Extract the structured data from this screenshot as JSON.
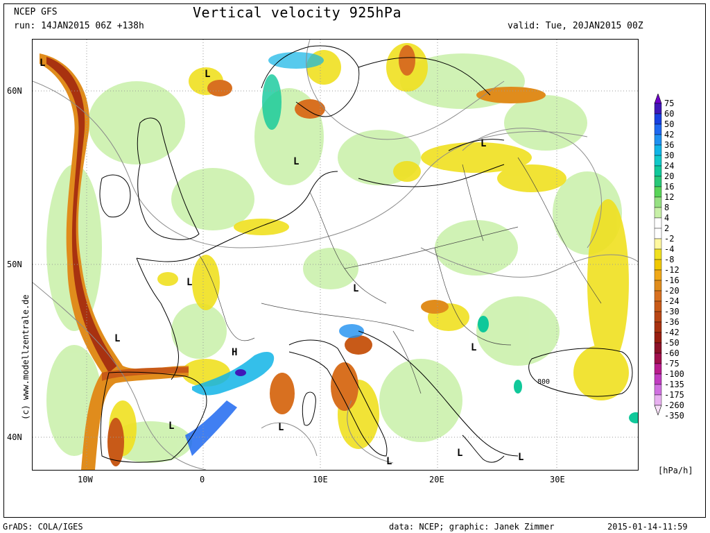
{
  "header": {
    "model": "NCEP GFS",
    "run": "run: 14JAN2015 06Z +138h",
    "title": "Vertical velocity 925hPa",
    "valid": "valid: Tue, 20JAN2015 00Z"
  },
  "footer": {
    "software": "GrADS: COLA/IGES",
    "credit": "data: NCEP; graphic: Janek Zimmer",
    "timestamp": "2015-01-14-11:59"
  },
  "side_credit": "(c) www.modellzentrale.de",
  "axes": {
    "x_labels": [
      "10W",
      "0",
      "10E",
      "20E",
      "30E"
    ],
    "y_labels": [
      "60N",
      "50N",
      "40N"
    ]
  },
  "pressure_centers": {
    "labels": [
      "L",
      "L",
      "L",
      "L",
      "L",
      "L",
      "L",
      "H",
      "L",
      "L",
      "L",
      "L",
      "L",
      "L"
    ],
    "contour_label": "800"
  },
  "legend": {
    "unit": "[hPa/h]",
    "values": [
      "75",
      "60",
      "50",
      "42",
      "36",
      "30",
      "24",
      "20",
      "16",
      "12",
      "8",
      "4",
      "2",
      "-2",
      "-4",
      "-8",
      "-12",
      "-16",
      "-20",
      "-24",
      "-30",
      "-36",
      "-42",
      "-50",
      "-60",
      "-75",
      "-100",
      "-135",
      "-175",
      "-260",
      "-350"
    ],
    "colors": [
      "#6f00cc",
      "#4018b8",
      "#1840e0",
      "#1e68f0",
      "#1e90f0",
      "#10b4e6",
      "#10c8c8",
      "#10c89a",
      "#28c878",
      "#58d458",
      "#96e082",
      "#c8f0a8",
      "#ffffff",
      "#ffffff",
      "#fff8a0",
      "#f0e020",
      "#f0c800",
      "#f0a818",
      "#e08c1c",
      "#d87020",
      "#c85a18",
      "#b84614",
      "#a83210",
      "#981e10",
      "#8c1228",
      "#a0104c",
      "#b81c8c",
      "#c03cc0",
      "#d070e0",
      "#e8b0f0",
      "#f8e0f8"
    ]
  }
}
